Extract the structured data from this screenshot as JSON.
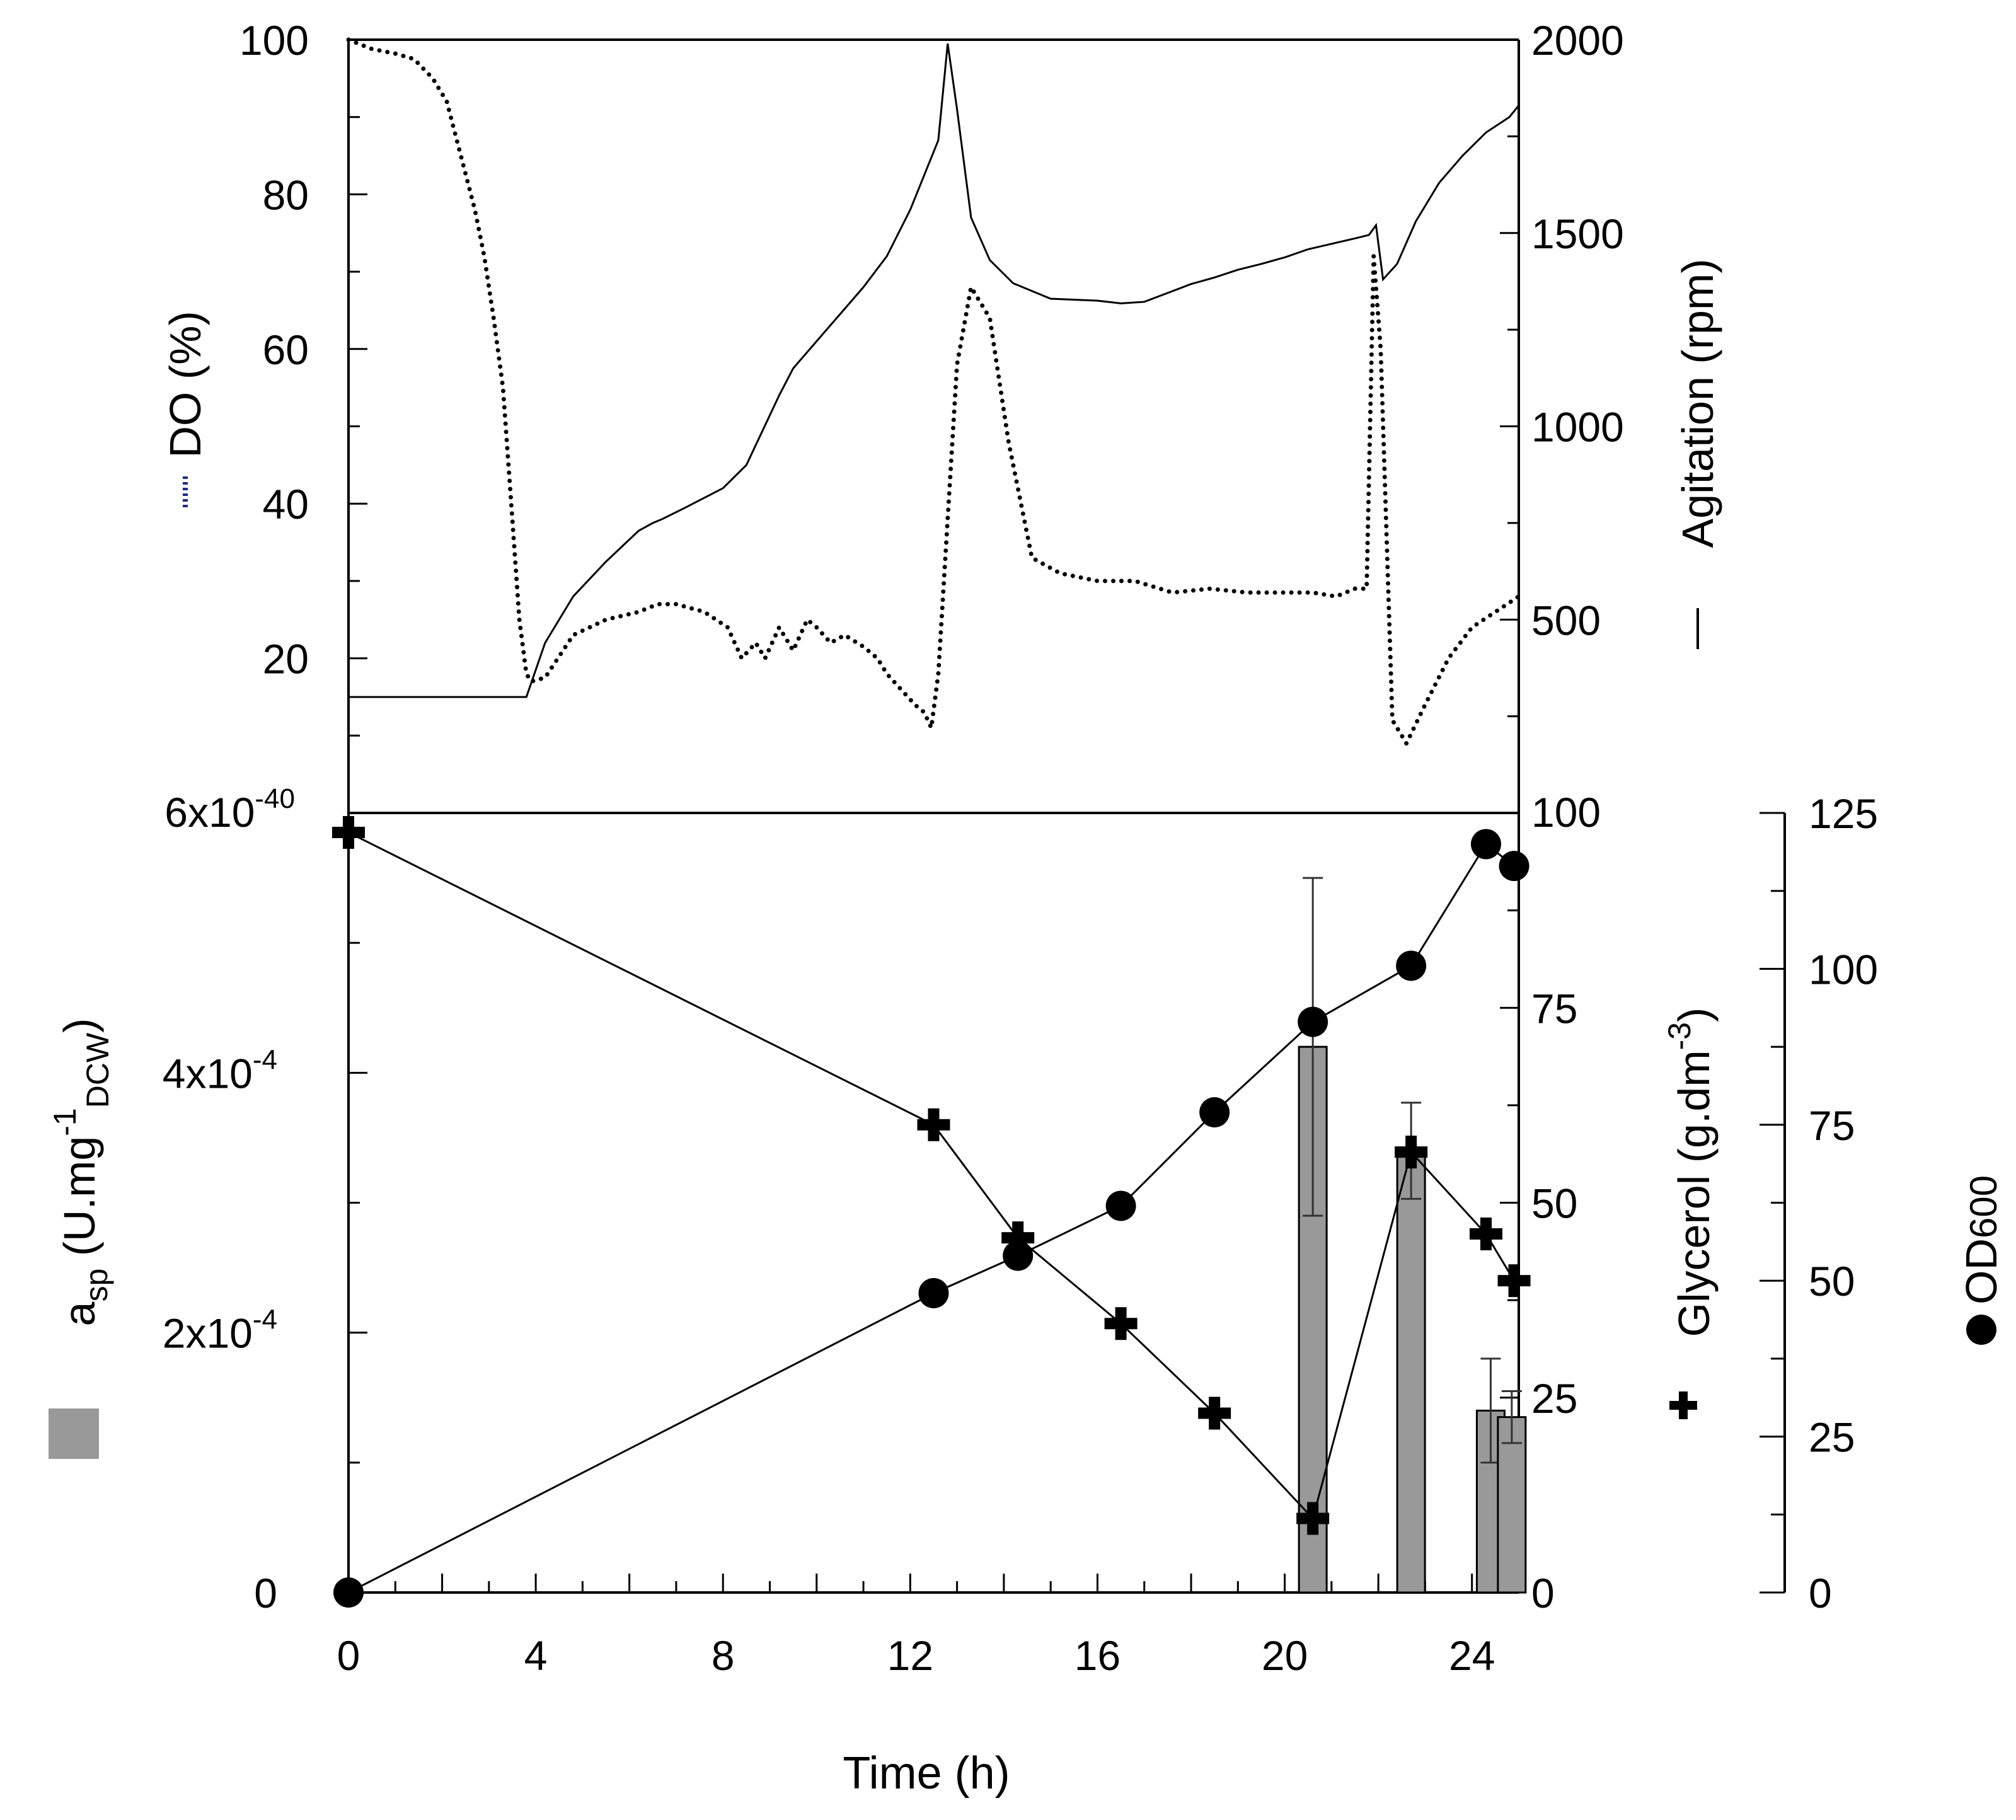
{
  "chart_data": [
    {
      "panel": "top",
      "type": "line",
      "x_axis": {
        "label": "Time (h)",
        "range": [
          0,
          25
        ]
      },
      "left_axis": {
        "label": "DO (%)",
        "legend_glyph": "dotted-line",
        "range": [
          0,
          100
        ],
        "ticks": [
          "20",
          "40",
          "60",
          "80",
          "100"
        ],
        "tick_values": [
          20,
          40,
          60,
          80,
          100
        ]
      },
      "right_axis": {
        "label": "Agitation (rpm)",
        "legend_glyph": "solid-line",
        "range": [
          0,
          2000
        ],
        "ticks": [
          "500",
          "1000",
          "1500",
          "2000"
        ],
        "tick_values": [
          500,
          1000,
          1500,
          2000
        ]
      },
      "series": [
        {
          "name": "DO",
          "axis": "left",
          "style": "dotted",
          "x": [
            0,
            0.5,
            1,
            1.4,
            1.8,
            2.1,
            2.4,
            2.7,
            2.9,
            3.1,
            3.3,
            3.5,
            3.65,
            3.8,
            3.9,
            4.2,
            4.8,
            5.5,
            6.2,
            6.6,
            7,
            7.6,
            8.1,
            8.4,
            8.7,
            8.9,
            9.2,
            9.5,
            9.8,
            10,
            10.3,
            10.6,
            11,
            11.3,
            11.5,
            11.8,
            12.1,
            12.3,
            12.45,
            12.6,
            12.8,
            13,
            13.3,
            13.7,
            14.1,
            14.6,
            15.2,
            16,
            16.8,
            17.6,
            18.4,
            19.2,
            20,
            20.6,
            21.1,
            21.5,
            21.75,
            21.9,
            22.05,
            22.3,
            22.6,
            23,
            23.5,
            24,
            24.5,
            25
          ],
          "y": [
            100,
            98.8,
            98.2,
            97.5,
            95,
            92,
            85,
            78,
            72,
            64,
            55,
            38,
            25,
            18,
            17,
            17.5,
            23,
            25,
            26,
            27,
            27,
            26,
            24,
            20,
            22,
            20,
            24,
            21,
            25,
            24,
            22,
            23,
            21.5,
            20,
            18,
            16,
            14,
            13,
            11,
            18,
            38,
            58,
            68,
            64,
            48,
            33,
            31,
            30,
            30,
            28.5,
            29,
            28.5,
            28.5,
            28.5,
            28,
            29,
            29,
            72,
            60,
            12,
            9,
            14,
            20,
            24,
            26,
            28
          ]
        },
        {
          "name": "Agitation",
          "axis": "right",
          "style": "solid",
          "x": [
            0,
            1,
            2,
            3,
            3.8,
            4.2,
            4.8,
            5.5,
            6.2,
            6.5,
            6.7,
            7.2,
            8,
            8.5,
            9.2,
            9.5,
            10,
            10.5,
            11,
            11.5,
            12,
            12.4,
            12.6,
            12.8,
            13,
            13.3,
            13.7,
            14.2,
            15,
            16,
            16.5,
            17,
            17.5,
            18,
            18.5,
            19,
            19.5,
            20,
            20.5,
            21,
            21.5,
            21.8,
            21.95,
            22.1,
            22.4,
            22.8,
            23.3,
            23.8,
            24.3,
            24.8,
            25
          ],
          "y": [
            300,
            300,
            300,
            300,
            300,
            440,
            560,
            650,
            730,
            750,
            760,
            790,
            840,
            900,
            1080,
            1150,
            1220,
            1290,
            1360,
            1440,
            1560,
            1680,
            1740,
            1990,
            1820,
            1540,
            1430,
            1370,
            1330,
            1325,
            1318,
            1322,
            1345,
            1368,
            1385,
            1405,
            1420,
            1437,
            1458,
            1472,
            1486,
            1495,
            1520,
            1380,
            1420,
            1530,
            1630,
            1700,
            1760,
            1800,
            1830
          ]
        }
      ]
    },
    {
      "panel": "bottom",
      "type": "bar+line",
      "x_axis": {
        "label": "Time (h)",
        "range": [
          0,
          25
        ],
        "ticks": [
          "0",
          "4",
          "8",
          "12",
          "16",
          "20",
          "24"
        ],
        "tick_values": [
          0,
          4,
          8,
          12,
          16,
          20,
          24
        ]
      },
      "left_axis": {
        "label_base": "a",
        "label_sub": "sp",
        "label_unit_prefix": " (U.mg",
        "label_sup": "-1",
        "label_sub2": "DCW",
        "label_close": ")",
        "legend_glyph": "grey-square",
        "range": [
          0,
          0.0006
        ],
        "tick_values": [
          0,
          0.0002,
          0.0004,
          0.0006
        ],
        "ticks": [
          {
            "base": "0",
            "exp": ""
          },
          {
            "base": "2x10",
            "exp": "-4"
          },
          {
            "base": "4x10",
            "exp": "-4"
          },
          {
            "base": "6x10",
            "exp": "-4"
          }
        ]
      },
      "glycerol_axis": {
        "label_prefix": "Glycerol (g.dm",
        "label_sup": "-3",
        "label_suffix": ")",
        "legend_glyph": "plus",
        "range": [
          0,
          100
        ],
        "ticks": [
          "0",
          "25",
          "50",
          "75",
          "100"
        ],
        "tick_values": [
          0,
          25,
          50,
          75,
          100
        ]
      },
      "od_axis": {
        "label_base": "OD",
        "label_sub": "600",
        "legend_glyph": "filled-circle",
        "range": [
          0,
          125
        ],
        "ticks": [
          "0",
          "25",
          "50",
          "75",
          "100",
          "125"
        ],
        "tick_values": [
          0,
          25,
          50,
          75,
          100,
          125
        ]
      },
      "series": [
        {
          "name": "a_sp",
          "type": "bar",
          "axis": "left",
          "color": "#999999",
          "x": [
            20.6,
            22.7,
            24.4,
            24.85
          ],
          "values": [
            0.00042,
            0.00034,
            0.00014,
            0.000135
          ],
          "error": [
            0.00013,
            3.7e-05,
            4e-05,
            2e-05
          ]
        },
        {
          "name": "Glycerol",
          "type": "line",
          "marker": "plus",
          "axis": "glycerol",
          "x": [
            0,
            12.5,
            14.3,
            16.5,
            18.5,
            20.6,
            22.7,
            24.3,
            24.9
          ],
          "y": [
            97.5,
            60,
            45.5,
            34.5,
            23,
            9.5,
            56.5,
            46,
            40
          ]
        },
        {
          "name": "OD600",
          "type": "line",
          "marker": "circle",
          "axis": "od",
          "x": [
            0,
            12.5,
            14.3,
            16.5,
            18.5,
            20.6,
            22.7,
            24.3,
            24.9
          ],
          "y": [
            0,
            48,
            54,
            62,
            77,
            91.5,
            100.5,
            120,
            116.5
          ]
        }
      ]
    }
  ],
  "overlap_label": "6x10",
  "overlap_exp": "-40",
  "overlap_right": "100"
}
